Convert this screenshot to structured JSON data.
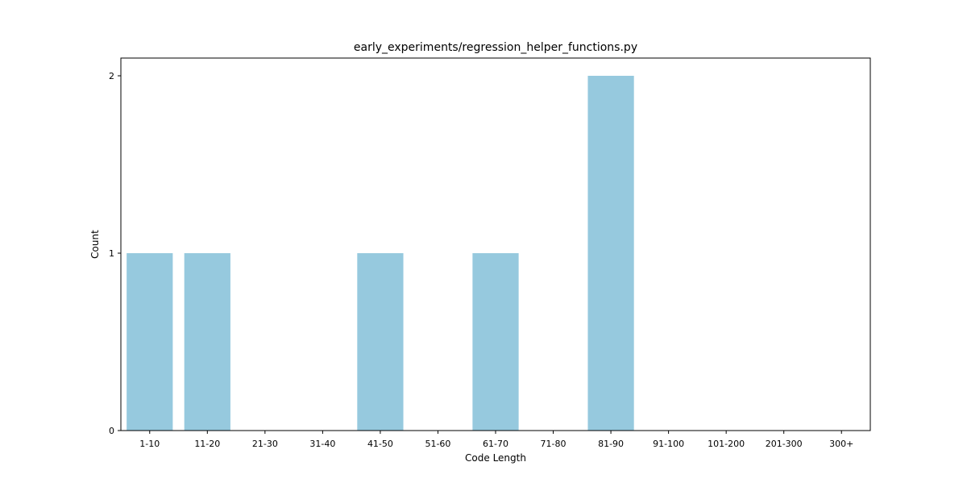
{
  "chart_data": {
    "type": "bar",
    "title": "early_experiments/regression_helper_functions.py",
    "xlabel": "Code Length",
    "ylabel": "Count",
    "categories": [
      "1-10",
      "11-20",
      "21-30",
      "31-40",
      "41-50",
      "51-60",
      "61-70",
      "71-80",
      "81-90",
      "91-100",
      "101-200",
      "201-300",
      "300+"
    ],
    "values": [
      1,
      1,
      0,
      0,
      1,
      0,
      1,
      0,
      2,
      0,
      0,
      0,
      0
    ],
    "ylim": [
      0,
      2.1
    ],
    "yticks": [
      0,
      1,
      2
    ],
    "grid": false,
    "bar_color": "#96c9de"
  }
}
